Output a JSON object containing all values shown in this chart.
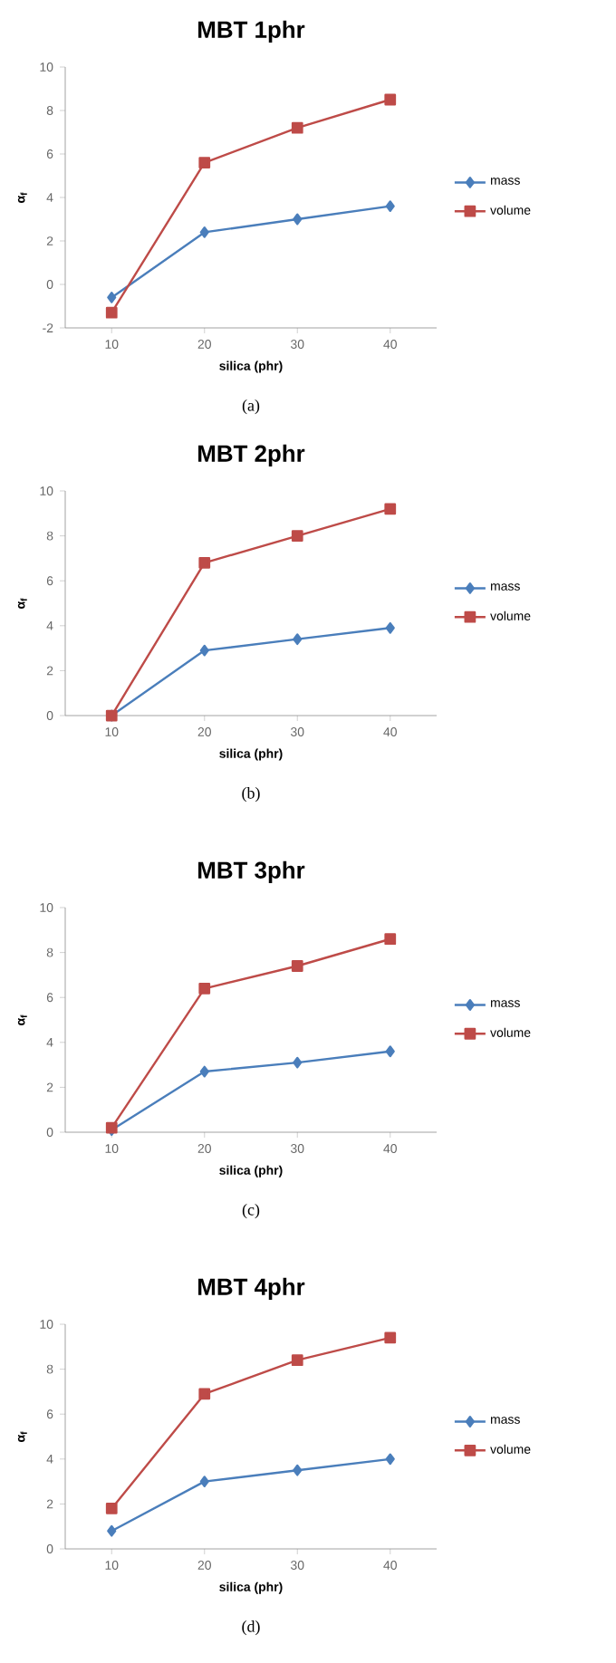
{
  "chart_data": [
    {
      "type": "line",
      "title": "MBT 1phr",
      "xlabel": "silica (phr)",
      "ylabel": "α$_{f}$",
      "categories": [
        "10",
        "20",
        "30",
        "40"
      ],
      "ylim": [
        -2,
        10
      ],
      "yticks": [
        -2,
        0,
        2,
        4,
        6,
        8,
        10
      ],
      "legend": "right",
      "annotations": [
        "(a)"
      ],
      "series": [
        {
          "name": "mass",
          "color": "#4a7ebb",
          "marker": "diamond",
          "values": [
            -0.6,
            2.4,
            3.0,
            3.6
          ]
        },
        {
          "name": "volume",
          "color": "#be4b48",
          "marker": "square",
          "values": [
            -1.3,
            5.6,
            7.2,
            8.5
          ]
        }
      ]
    },
    {
      "type": "line",
      "title": "MBT 2phr",
      "xlabel": "silica (phr)",
      "ylabel": "α$_{f}$",
      "categories": [
        "10",
        "20",
        "30",
        "40"
      ],
      "ylim": [
        0,
        10
      ],
      "yticks": [
        0,
        2,
        4,
        6,
        8,
        10
      ],
      "legend": "right",
      "annotations": [
        "(b)"
      ],
      "series": [
        {
          "name": "mass",
          "color": "#4a7ebb",
          "marker": "diamond",
          "values": [
            0,
            2.9,
            3.4,
            3.9
          ]
        },
        {
          "name": "volume",
          "color": "#be4b48",
          "marker": "square",
          "values": [
            0.0,
            6.8,
            8.0,
            9.2
          ]
        }
      ]
    },
    {
      "type": "line",
      "title": "MBT 3phr",
      "xlabel": "silica (phr)",
      "ylabel": "α$_{f}$",
      "categories": [
        "10",
        "20",
        "30",
        "40"
      ],
      "ylim": [
        0,
        10
      ],
      "yticks": [
        0,
        2,
        4,
        6,
        8,
        10
      ],
      "legend": "right",
      "annotations": [
        "(c)"
      ],
      "series": [
        {
          "name": "mass",
          "color": "#4a7ebb",
          "marker": "diamond",
          "values": [
            0.1,
            2.7,
            3.1,
            3.6
          ]
        },
        {
          "name": "volume",
          "color": "#be4b48",
          "marker": "square",
          "values": [
            0.2,
            6.4,
            7.4,
            8.6
          ]
        }
      ]
    },
    {
      "type": "line",
      "title": "MBT 4phr",
      "xlabel": "silica (phr)",
      "ylabel": "α$_{f}$",
      "categories": [
        "10",
        "20",
        "30",
        "40"
      ],
      "ylim": [
        0,
        10
      ],
      "yticks": [
        0,
        2,
        4,
        6,
        8,
        10
      ],
      "legend": "right",
      "annotations": [
        "(d)"
      ],
      "series": [
        {
          "name": "mass",
          "color": "#4a7ebb",
          "marker": "diamond",
          "values": [
            0.8,
            3.0,
            3.5,
            4.0
          ]
        },
        {
          "name": "volume",
          "color": "#be4b48",
          "marker": "square",
          "values": [
            1.8,
            6.9,
            8.4,
            9.4
          ]
        }
      ]
    }
  ]
}
